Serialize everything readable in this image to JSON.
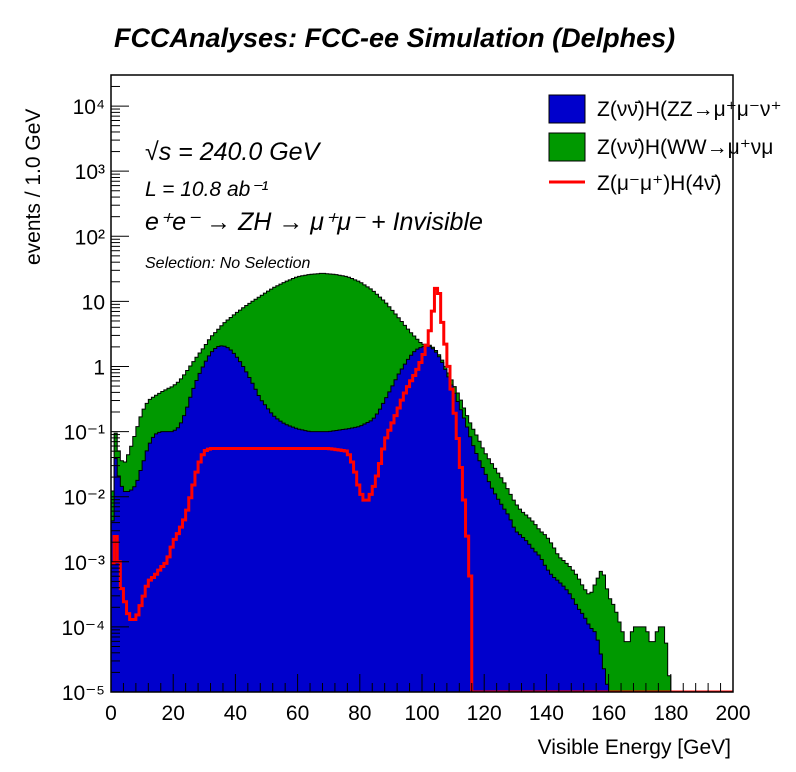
{
  "title": "FCCAnalyses: FCC-ee Simulation (Delphes)",
  "annotations": {
    "sqrts": "√s = 240.0 GeV",
    "lumi": "L = 10.8 ab⁻¹",
    "process": "e⁺e⁻ → ZH → μ⁺μ⁻ + Invisible",
    "selection": "Selection: No Selection"
  },
  "chart_data": {
    "type": "histogram",
    "xlabel": "Visible Energy [GeV]",
    "ylabel": "events / 1.0 GeV",
    "xlim": [
      0,
      200
    ],
    "ylim": [
      1e-05,
      30000
    ],
    "yscale": "log",
    "x_ticks": [
      "0",
      "20",
      "40",
      "60",
      "80",
      "100",
      "120",
      "140",
      "160",
      "180",
      "200"
    ],
    "y_ticks": [
      "10⁻⁵",
      "10⁻⁴",
      "10⁻³",
      "10⁻²",
      "10⁻¹",
      "1",
      "10",
      "10²",
      "10³",
      "10⁴"
    ],
    "legend_position": "top-right",
    "series": [
      {
        "name": "Z(νν̄)H(ZZ→μ⁺μ⁻ν⁺",
        "style": "filled-stack",
        "color": "#0000cc",
        "points": [
          [
            0,
            0.0003
          ],
          [
            1,
            0.06
          ],
          [
            2,
            0.025
          ],
          [
            4,
            0.012
          ],
          [
            6,
            0.012
          ],
          [
            8,
            0.015
          ],
          [
            10,
            0.03
          ],
          [
            12,
            0.06
          ],
          [
            14,
            0.09
          ],
          [
            16,
            0.1
          ],
          [
            18,
            0.1
          ],
          [
            20,
            0.1
          ],
          [
            22,
            0.12
          ],
          [
            24,
            0.2
          ],
          [
            26,
            0.4
          ],
          [
            28,
            0.7
          ],
          [
            30,
            1.1
          ],
          [
            32,
            1.6
          ],
          [
            34,
            2.0
          ],
          [
            36,
            2.1
          ],
          [
            38,
            1.9
          ],
          [
            40,
            1.5
          ],
          [
            42,
            1.1
          ],
          [
            44,
            0.75
          ],
          [
            46,
            0.5
          ],
          [
            48,
            0.32
          ],
          [
            50,
            0.24
          ],
          [
            52,
            0.18
          ],
          [
            54,
            0.15
          ],
          [
            56,
            0.13
          ],
          [
            60,
            0.11
          ],
          [
            64,
            0.1
          ],
          [
            70,
            0.1
          ],
          [
            76,
            0.11
          ],
          [
            80,
            0.12
          ],
          [
            84,
            0.15
          ],
          [
            86,
            0.2
          ],
          [
            88,
            0.3
          ],
          [
            90,
            0.45
          ],
          [
            92,
            0.7
          ],
          [
            94,
            1.0
          ],
          [
            96,
            1.4
          ],
          [
            98,
            1.8
          ],
          [
            100,
            2.0
          ],
          [
            102,
            2.1
          ],
          [
            104,
            1.8
          ],
          [
            106,
            1.3
          ],
          [
            108,
            0.8
          ],
          [
            110,
            0.45
          ],
          [
            112,
            0.25
          ],
          [
            114,
            0.14
          ],
          [
            116,
            0.07
          ],
          [
            118,
            0.04
          ],
          [
            120,
            0.025
          ],
          [
            122,
            0.015
          ],
          [
            124,
            0.01
          ],
          [
            126,
            0.007
          ],
          [
            128,
            0.005
          ],
          [
            130,
            0.003
          ],
          [
            132,
            0.0025
          ],
          [
            134,
            0.002
          ],
          [
            136,
            0.0015
          ],
          [
            138,
            0.0012
          ],
          [
            140,
            0.0008
          ],
          [
            142,
            0.0006
          ],
          [
            144,
            0.0005
          ],
          [
            146,
            0.0004
          ],
          [
            148,
            0.0003
          ],
          [
            150,
            0.0002
          ],
          [
            152,
            0.00015
          ],
          [
            154,
            0.0001
          ],
          [
            156,
            8e-05
          ],
          [
            158,
            3e-05
          ],
          [
            160,
            1e-05
          ]
        ]
      },
      {
        "name": "Z(νν̄)H(WW→μ⁺νμ",
        "style": "filled-stack",
        "color": "#009900",
        "points": [
          [
            0,
            0.001
          ],
          [
            1,
            0.15
          ],
          [
            2,
            0.06
          ],
          [
            4,
            0.03
          ],
          [
            6,
            0.05
          ],
          [
            8,
            0.1
          ],
          [
            10,
            0.2
          ],
          [
            12,
            0.3
          ],
          [
            14,
            0.35
          ],
          [
            16,
            0.4
          ],
          [
            18,
            0.45
          ],
          [
            20,
            0.5
          ],
          [
            22,
            0.6
          ],
          [
            24,
            0.8
          ],
          [
            26,
            1.1
          ],
          [
            28,
            1.5
          ],
          [
            30,
            2.0
          ],
          [
            32,
            2.8
          ],
          [
            34,
            3.5
          ],
          [
            36,
            4.5
          ],
          [
            40,
            6.5
          ],
          [
            44,
            9
          ],
          [
            48,
            12
          ],
          [
            52,
            16
          ],
          [
            56,
            20
          ],
          [
            60,
            24
          ],
          [
            64,
            26
          ],
          [
            68,
            27
          ],
          [
            72,
            26
          ],
          [
            76,
            24
          ],
          [
            80,
            20
          ],
          [
            84,
            15
          ],
          [
            88,
            10
          ],
          [
            92,
            6
          ],
          [
            96,
            3.5
          ],
          [
            100,
            2.2
          ],
          [
            102,
            2.2
          ],
          [
            104,
            1.9
          ],
          [
            106,
            1.4
          ],
          [
            108,
            0.9
          ],
          [
            110,
            0.55
          ],
          [
            112,
            0.35
          ],
          [
            114,
            0.2
          ],
          [
            116,
            0.12
          ],
          [
            118,
            0.08
          ],
          [
            120,
            0.05
          ],
          [
            122,
            0.035
          ],
          [
            124,
            0.025
          ],
          [
            126,
            0.018
          ],
          [
            128,
            0.012
          ],
          [
            130,
            0.008
          ],
          [
            132,
            0.006
          ],
          [
            134,
            0.005
          ],
          [
            136,
            0.004
          ],
          [
            138,
            0.003
          ],
          [
            140,
            0.0025
          ],
          [
            142,
            0.0018
          ],
          [
            144,
            0.0012
          ],
          [
            146,
            0.001
          ],
          [
            148,
            0.0008
          ],
          [
            150,
            0.0006
          ],
          [
            152,
            0.0004
          ],
          [
            154,
            0.0003
          ],
          [
            156,
            0.0005
          ],
          [
            158,
            0.0008
          ],
          [
            160,
            0.0003
          ],
          [
            162,
            0.0002
          ],
          [
            164,
            0.0001
          ],
          [
            166,
            5e-05
          ],
          [
            168,
            0.0001
          ],
          [
            170,
            0.0001
          ],
          [
            172,
            0.0001
          ],
          [
            174,
            5e-05
          ],
          [
            176,
            0.0001
          ],
          [
            178,
            0.0001
          ],
          [
            180,
            1e-05
          ]
        ]
      },
      {
        "name": "Z(μ⁻μ⁺)H(4ν̄)",
        "style": "line",
        "color": "#ff0000",
        "points": [
          [
            0,
            0.0003
          ],
          [
            1,
            0.003
          ],
          [
            2,
            0.002
          ],
          [
            3,
            0.0005
          ],
          [
            4,
            0.0003
          ],
          [
            6,
            0.00013
          ],
          [
            8,
            0.00013
          ],
          [
            10,
            0.00025
          ],
          [
            12,
            0.0005
          ],
          [
            14,
            0.0006
          ],
          [
            16,
            0.0008
          ],
          [
            18,
            0.001
          ],
          [
            20,
            0.002
          ],
          [
            22,
            0.003
          ],
          [
            24,
            0.005
          ],
          [
            26,
            0.012
          ],
          [
            28,
            0.03
          ],
          [
            30,
            0.05
          ],
          [
            32,
            0.055
          ],
          [
            36,
            0.055
          ],
          [
            40,
            0.055
          ],
          [
            50,
            0.055
          ],
          [
            60,
            0.055
          ],
          [
            70,
            0.055
          ],
          [
            76,
            0.05
          ],
          [
            78,
            0.03
          ],
          [
            80,
            0.012
          ],
          [
            82,
            0.008
          ],
          [
            84,
            0.012
          ],
          [
            86,
            0.025
          ],
          [
            88,
            0.07
          ],
          [
            90,
            0.12
          ],
          [
            92,
            0.2
          ],
          [
            94,
            0.35
          ],
          [
            96,
            0.55
          ],
          [
            98,
            0.8
          ],
          [
            100,
            1.3
          ],
          [
            102,
            2.5
          ],
          [
            104,
            10
          ],
          [
            105,
            25
          ],
          [
            106,
            7
          ],
          [
            108,
            1.5
          ],
          [
            110,
            0.3
          ],
          [
            112,
            0.05
          ],
          [
            114,
            0.005
          ],
          [
            116,
            0.0003
          ],
          [
            116.5,
            1e-05
          ],
          [
            200,
            1e-05
          ]
        ]
      }
    ]
  }
}
